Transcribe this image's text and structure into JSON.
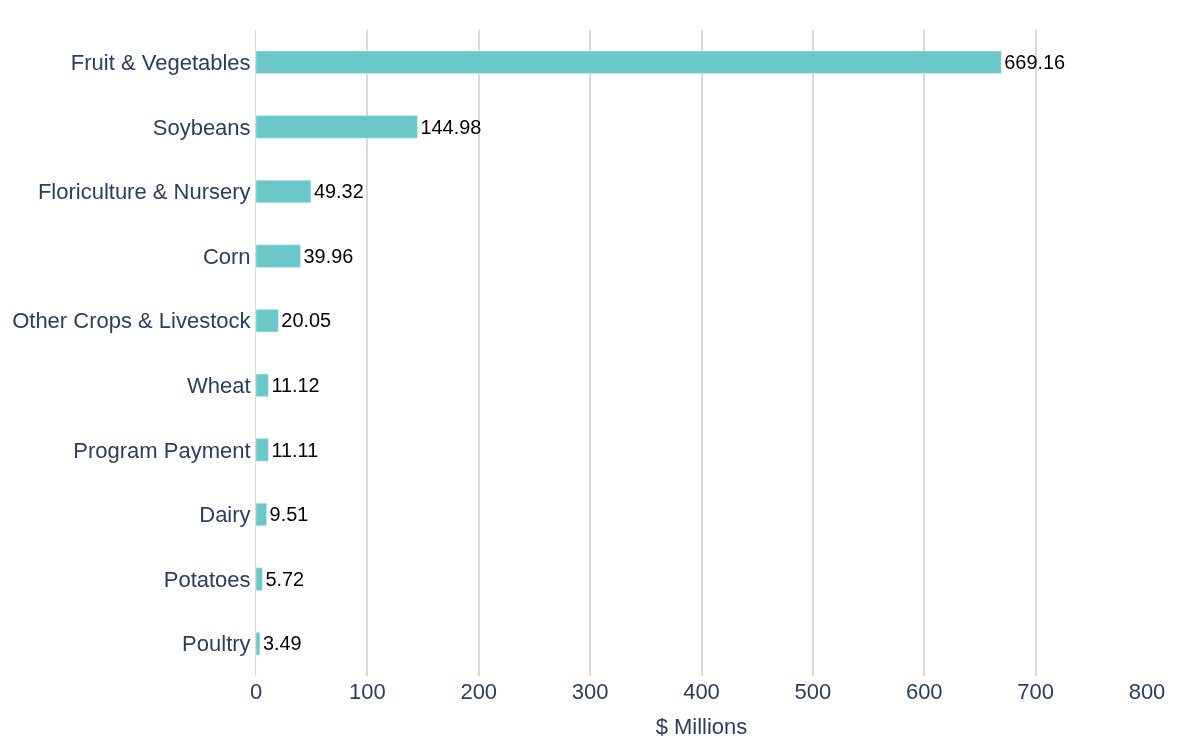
{
  "chart_data": {
    "type": "bar",
    "orientation": "horizontal",
    "xlabel": "$ Millions",
    "categories": [
      "Fruit & Vegetables",
      "Soybeans",
      "Floriculture & Nursery",
      "Corn",
      "Other Crops & Livestock",
      "Wheat",
      "Program Payment",
      "Dairy",
      "Potatoes",
      "Poultry"
    ],
    "values": [
      669.16,
      144.98,
      49.32,
      39.96,
      20.05,
      11.12,
      11.11,
      9.51,
      5.72,
      3.49
    ],
    "color": "#6ac9c8",
    "data_labels": true,
    "grid": "x",
    "xlim": [
      0,
      800
    ],
    "xticks": [
      0,
      100,
      200,
      300,
      400,
      500,
      600,
      700,
      800
    ]
  }
}
